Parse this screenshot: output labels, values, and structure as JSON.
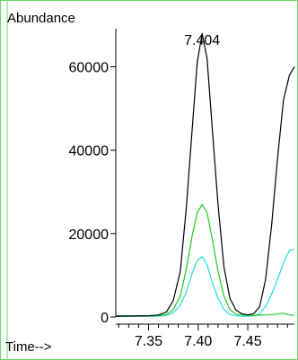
{
  "chart_data": {
    "type": "line",
    "title": "",
    "ylabel": "Abundance",
    "xlabel": "Time-->",
    "xlim": [
      7.317,
      7.497
    ],
    "ylim": [
      0,
      70000
    ],
    "y_ticks": [
      0,
      20000,
      40000,
      60000
    ],
    "y_tick_labels": [
      "0",
      "20000",
      "40000",
      "60000"
    ],
    "x_ticks": [
      7.35,
      7.4,
      7.45
    ],
    "x_tick_labels": [
      "7.35",
      "7.40",
      "7.45"
    ],
    "x_minor_step": 0.01,
    "grid": false,
    "legend": "none",
    "annotations": [
      {
        "text": "7.404",
        "x": 7.404,
        "y": 67000
      }
    ],
    "colors": {
      "frame": "#66dd66",
      "axis": "#000000",
      "series": [
        "#000000",
        "#22cc22",
        "#22dddd"
      ]
    },
    "series": [
      {
        "color": "#000000",
        "x": [
          7.317,
          7.35,
          7.36,
          7.368,
          7.375,
          7.382,
          7.388,
          7.394,
          7.399,
          7.404,
          7.409,
          7.414,
          7.42,
          7.426,
          7.432,
          7.438,
          7.444,
          7.45,
          7.456,
          7.462,
          7.468,
          7.474,
          7.48,
          7.486,
          7.492,
          7.497
        ],
        "y": [
          200,
          300,
          500,
          1200,
          4000,
          11000,
          26000,
          45000,
          61000,
          68000,
          62000,
          46000,
          27000,
          12000,
          4500,
          1700,
          800,
          500,
          800,
          2500,
          9000,
          22000,
          38000,
          52000,
          58000,
          60000
        ]
      },
      {
        "color": "#22cc22",
        "x": [
          7.317,
          7.35,
          7.36,
          7.368,
          7.375,
          7.382,
          7.388,
          7.394,
          7.399,
          7.404,
          7.409,
          7.414,
          7.42,
          7.426,
          7.432,
          7.438,
          7.444,
          7.45,
          7.456,
          7.462,
          7.468,
          7.474,
          7.48,
          7.486,
          7.492,
          7.497
        ],
        "y": [
          300,
          300,
          350,
          600,
          1800,
          5000,
          11500,
          19500,
          25000,
          27000,
          25000,
          19000,
          11000,
          5000,
          1800,
          700,
          500,
          450,
          400,
          450,
          500,
          550,
          700,
          900,
          500,
          400
        ]
      },
      {
        "color": "#22dddd",
        "x": [
          7.317,
          7.35,
          7.36,
          7.368,
          7.375,
          7.382,
          7.388,
          7.394,
          7.399,
          7.404,
          7.409,
          7.414,
          7.42,
          7.426,
          7.432,
          7.438,
          7.444,
          7.45,
          7.456,
          7.462,
          7.468,
          7.474,
          7.48,
          7.486,
          7.492,
          7.497
        ],
        "y": [
          150,
          150,
          200,
          400,
          1000,
          2800,
          6000,
          10500,
          13500,
          14500,
          12500,
          8500,
          4500,
          1800,
          600,
          300,
          200,
          200,
          300,
          800,
          2500,
          5500,
          9000,
          13000,
          16000,
          16200
        ]
      }
    ]
  }
}
